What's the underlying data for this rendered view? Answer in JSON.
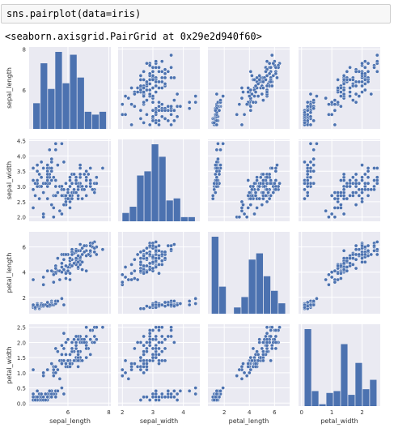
{
  "notebook": {
    "input_code": "sns.pairplot(data=iris)",
    "output_text": "<seaborn.axisgrid.PairGrid at 0x29e2d940f60>"
  },
  "colors": {
    "panel_bg": "#eaeaf2",
    "grid": "#ffffff",
    "mark": "#4c72b0",
    "text": "#333333"
  },
  "chart_data": {
    "type": "scatter",
    "variables": [
      "sepal_length",
      "sepal_width",
      "petal_length",
      "petal_width"
    ],
    "ticks": [
      {
        "values": [
          6,
          8
        ],
        "labels": [
          "6",
          "8"
        ]
      },
      {
        "values": [
          2.0,
          2.5,
          3.0,
          3.5,
          4.0,
          4.5
        ],
        "labels": [
          "2.0",
          "2.5",
          "3.0",
          "3.5",
          "4.0",
          "4.5"
        ]
      },
      {
        "values": [
          2,
          4,
          6
        ],
        "labels": [
          "2",
          "4",
          "6"
        ]
      },
      {
        "values": [
          0.0,
          0.5,
          1.0,
          1.5,
          2.0,
          2.5
        ],
        "labels": [
          "0.0",
          "0.5",
          "1.0",
          "1.5",
          "2.0",
          "2.5"
        ]
      }
    ],
    "x_ticks": [
      {
        "values": [
          6,
          8
        ],
        "labels": [
          "6",
          "8"
        ]
      },
      {
        "values": [
          2,
          3,
          4
        ],
        "labels": [
          "2",
          "3",
          "4"
        ]
      },
      {
        "values": [
          2,
          4,
          6
        ],
        "labels": [
          "2",
          "4",
          "6"
        ]
      },
      {
        "values": [
          0,
          1,
          2
        ],
        "labels": [
          "0",
          "1",
          "2"
        ]
      }
    ],
    "ranges": [
      [
        4.1,
        8.1
      ],
      [
        1.86,
        4.54
      ],
      [
        0.7,
        7.2
      ],
      [
        -0.1,
        2.6
      ]
    ],
    "histograms": [
      {
        "bin_start": 4.3,
        "bin_width": 0.36,
        "counts": [
          9,
          23,
          14,
          27,
          16,
          26,
          18,
          6,
          5,
          6
        ]
      },
      {
        "bin_start": 2.0,
        "bin_width": 0.24,
        "counts": [
          4,
          7,
          22,
          24,
          37,
          31,
          10,
          11,
          2,
          2
        ]
      },
      {
        "bin_start": 1.0,
        "bin_width": 0.59,
        "counts": [
          37,
          13,
          0,
          3,
          8,
          26,
          29,
          18,
          11,
          5
        ]
      },
      {
        "bin_start": 0.1,
        "bin_width": 0.24,
        "counts": [
          41,
          8,
          1,
          7,
          8,
          33,
          6,
          23,
          9,
          14
        ]
      }
    ],
    "n_points": 150
  }
}
